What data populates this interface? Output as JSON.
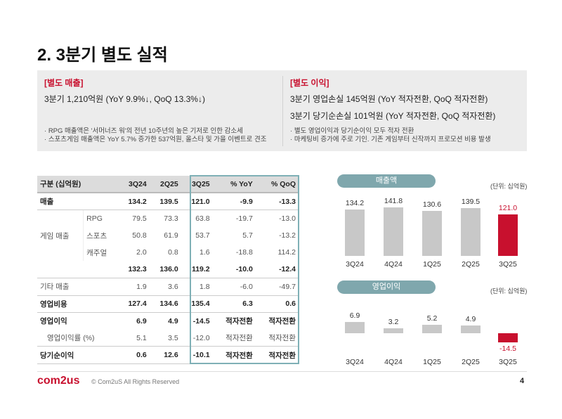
{
  "title": "2. 3분기 별도 실적",
  "summary": {
    "left": {
      "head": "[별도 매출]",
      "lines": [
        "3분기 1,210억원 (YoY 9.9%↓, QoQ 13.3%↓)"
      ],
      "bullets": [
        "RPG 매출액은 '서머너즈 워'의 전년 10주년의 높은 기저로 인한 감소세",
        "스포츠게임 매출액은 YoY 5.7% 증가한 537억원, 올스타 및 가을 이벤트로 견조"
      ]
    },
    "right": {
      "head": "[별도 이익]",
      "lines": [
        "3분기 영업손실 145억원 (YoY 적자전환, QoQ 적자전환)",
        "3분기 당기순손실 101억원 (YoY 적자전환, QoQ 적자전환)"
      ],
      "bullets": [
        "별도 영업이익과 당기순이익 모두 적자 전환",
        "마케팅비 증가에 주로 기인. 기존 게임부터 신작까지 프로모션 비용 발생"
      ]
    }
  },
  "table": {
    "headers": [
      "구분 (십억원)",
      "3Q24",
      "2Q25",
      "3Q25",
      "% YoY",
      "% QoQ"
    ],
    "rows": [
      {
        "label": "매출",
        "sub": "",
        "v": [
          "134.2",
          "139.5",
          "121.0",
          "-9.9",
          "-13.3"
        ]
      },
      {
        "label": "게임 매출",
        "sub": "RPG",
        "v": [
          "79.5",
          "73.3",
          "63.8",
          "-19.7",
          "-13.0"
        ]
      },
      {
        "label": "",
        "sub": "스포츠",
        "v": [
          "50.8",
          "61.9",
          "53.7",
          "5.7",
          "-13.2"
        ]
      },
      {
        "label": "",
        "sub": "캐주얼",
        "v": [
          "2.0",
          "0.8",
          "1.6",
          "-18.8",
          "114.2"
        ]
      },
      {
        "label": "",
        "sub": "",
        "v": [
          "132.3",
          "136.0",
          "119.2",
          "-10.0",
          "-12.4"
        ]
      },
      {
        "label": "기타 매출",
        "sub": "",
        "v": [
          "1.9",
          "3.6",
          "1.8",
          "-6.0",
          "-49.7"
        ]
      },
      {
        "label": "영업비용",
        "sub": "",
        "v": [
          "127.4",
          "134.6",
          "135.4",
          "6.3",
          "0.6"
        ]
      },
      {
        "label": "영업이익",
        "sub": "",
        "v": [
          "6.9",
          "4.9",
          "-14.5",
          "적자전환",
          "적자전환"
        ]
      },
      {
        "label": "영업이익률 (%)",
        "sub": "",
        "v": [
          "5.1",
          "3.5",
          "-12.0",
          "적자전환",
          "적자전환"
        ]
      },
      {
        "label": "당기순이익",
        "sub": "",
        "v": [
          "0.6",
          "12.6",
          "-10.1",
          "적자전환",
          "적자전환"
        ]
      }
    ]
  },
  "chart_data": [
    {
      "type": "bar",
      "title": "매출액",
      "unit": "(단위: 십억원)",
      "categories": [
        "3Q24",
        "4Q24",
        "1Q25",
        "2Q25",
        "3Q25"
      ],
      "values": [
        134.2,
        141.8,
        130.6,
        139.5,
        121.0
      ],
      "labels": [
        "134.2",
        "141.8",
        "130.6",
        "139.5",
        "121.0"
      ],
      "colors": [
        "#c8c8c8",
        "#c8c8c8",
        "#c8c8c8",
        "#c8c8c8",
        "#c8102e"
      ]
    },
    {
      "type": "bar",
      "title": "영업이익",
      "unit": "(단위: 십억원)",
      "categories": [
        "3Q24",
        "4Q24",
        "1Q25",
        "2Q25",
        "3Q25"
      ],
      "values": [
        6.9,
        3.2,
        5.2,
        4.9,
        -14.5
      ],
      "labels": [
        "6.9",
        "3.2",
        "5.2",
        "4.9",
        "-14.5"
      ],
      "colors": [
        "#c8c8c8",
        "#c8c8c8",
        "#c8c8c8",
        "#c8c8c8",
        "#c8102e"
      ]
    }
  ],
  "footer": {
    "logo": "com2us",
    "copyright": "© Com2uS All Rights Reserved",
    "page": "4"
  }
}
